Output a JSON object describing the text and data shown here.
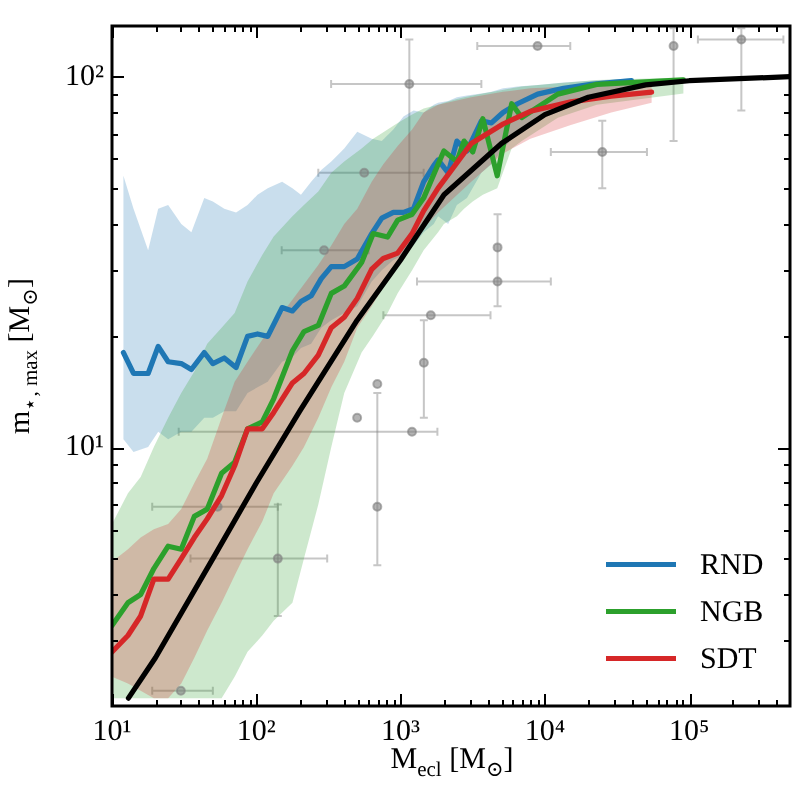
{
  "chart_data": {
    "type": "line",
    "xlabel": "M$_{ecl}$ [M$_{⊙}$]",
    "ylabel": "m$_{⋆, max}$ [M$_{⊙}$]",
    "log": "xy",
    "grid": false,
    "legend": "bottom right",
    "marker": "none",
    "xlim": [
      10,
      500000
    ],
    "ylim": [
      2,
      137
    ],
    "xticks": [
      {
        "value": 10,
        "label": "10¹"
      },
      {
        "value": 20,
        "label": null
      },
      {
        "value": 30,
        "label": null
      },
      {
        "value": 40,
        "label": null
      },
      {
        "value": 50,
        "label": null
      },
      {
        "value": 60,
        "label": null
      },
      {
        "value": 70,
        "label": null
      },
      {
        "value": 80,
        "label": null
      },
      {
        "value": 90,
        "label": null
      },
      {
        "value": 100,
        "label": "10²"
      },
      {
        "value": 200,
        "label": null
      },
      {
        "value": 300,
        "label": null
      },
      {
        "value": 400,
        "label": null
      },
      {
        "value": 500,
        "label": null
      },
      {
        "value": 600,
        "label": null
      },
      {
        "value": 700,
        "label": null
      },
      {
        "value": 800,
        "label": null
      },
      {
        "value": 900,
        "label": null
      },
      {
        "value": 1000,
        "label": "10³"
      },
      {
        "value": 2000,
        "label": null
      },
      {
        "value": 3000,
        "label": null
      },
      {
        "value": 4000,
        "label": null
      },
      {
        "value": 5000,
        "label": null
      },
      {
        "value": 6000,
        "label": null
      },
      {
        "value": 7000,
        "label": null
      },
      {
        "value": 8000,
        "label": null
      },
      {
        "value": 9000,
        "label": null
      },
      {
        "value": 10000,
        "label": "10⁴"
      },
      {
        "value": 20000,
        "label": null
      },
      {
        "value": 30000,
        "label": null
      },
      {
        "value": 40000,
        "label": null
      },
      {
        "value": 50000,
        "label": null
      },
      {
        "value": 60000,
        "label": null
      },
      {
        "value": 70000,
        "label": null
      },
      {
        "value": 80000,
        "label": null
      },
      {
        "value": 90000,
        "label": null
      },
      {
        "value": 100000,
        "label": "10⁵"
      },
      {
        "value": 200000,
        "label": null
      },
      {
        "value": 300000,
        "label": null
      },
      {
        "value": 400000,
        "label": null
      }
    ],
    "yticks": [
      {
        "value": 3,
        "label": null
      },
      {
        "value": 4,
        "label": null
      },
      {
        "value": 5,
        "label": null
      },
      {
        "value": 6,
        "label": null
      },
      {
        "value": 7,
        "label": null
      },
      {
        "value": 8,
        "label": null
      },
      {
        "value": 9,
        "label": null
      },
      {
        "value": 10,
        "label": "10¹"
      },
      {
        "value": 20,
        "label": null
      },
      {
        "value": 30,
        "label": null
      },
      {
        "value": 40,
        "label": null
      },
      {
        "value": 50,
        "label": null
      },
      {
        "value": 60,
        "label": null
      },
      {
        "value": 70,
        "label": null
      },
      {
        "value": 80,
        "label": null
      },
      {
        "value": 90,
        "label": null
      },
      {
        "value": 100,
        "label": "10²"
      }
    ],
    "series": [
      {
        "type": "scatter",
        "marker": "circle",
        "color": "#808080",
        "x": [
          1150,
          230000,
          78000,
          8900,
          25000,
          4700,
          1620,
          4700,
          1450,
          690,
          1200,
          141,
          30,
          690,
          54,
          500,
          560,
          295
        ],
        "values": [
          95.5,
          126,
          121,
          121,
          62.6,
          34.6,
          22.7,
          28,
          16.9,
          14.8,
          11,
          5.0,
          2.2,
          6.9,
          6.9,
          12,
          55,
          34
        ],
        "xerrors": [
          [
            330,
            3630
          ],
          [
            115000,
            450000
          ],
          null,
          [
            3400,
            15000
          ],
          [
            11000,
            51000
          ],
          null,
          [
            760,
            4200
          ],
          [
            1300,
            11000
          ],
          null,
          null,
          [
            29,
            1800
          ],
          [
            35,
            310
          ],
          [
            19,
            50
          ],
          null,
          [
            19,
            141
          ],
          null,
          [
            269,
            1445
          ],
          [
            150,
            600
          ]
        ],
        "errors": [
          [
            42,
            126
          ],
          [
            81,
            135
          ],
          [
            67,
            135
          ],
          null,
          [
            50,
            76
          ],
          [
            24,
            42.5
          ],
          null,
          null,
          [
            12,
            22
          ],
          null,
          null,
          [
            3.5,
            7
          ],
          null,
          [
            4.8,
            14
          ],
          null,
          null,
          null,
          null
        ]
      },
      {
        "name": "RND",
        "color": "#1f77b4",
        "x": [
          12,
          14.1,
          17.8,
          20.9,
          24.5,
          30.2,
          35.5,
          43.6,
          50,
          60,
          72.4,
          87,
          102,
          120,
          151,
          178,
          204,
          240,
          282,
          331,
          407,
          501,
          631,
          741,
          891,
          1047,
          1230,
          1445,
          1698,
          1820,
          2138,
          2455,
          2884,
          3631,
          4266,
          5129,
          6457,
          8913,
          13490,
          20890,
          39810
        ],
        "values": [
          18,
          15.8,
          15.8,
          18.7,
          17,
          16.8,
          16.2,
          18,
          16.8,
          17.4,
          16.4,
          19.9,
          20.2,
          19.9,
          23.8,
          23.3,
          24.7,
          25.6,
          28.5,
          30.7,
          30.7,
          32.2,
          37.7,
          41.5,
          43,
          43,
          44,
          52,
          57.5,
          59.6,
          55,
          67,
          63,
          76,
          75,
          80,
          84.5,
          89.7,
          93,
          95.3,
          97.6
        ],
        "upper": [
          54,
          44,
          34,
          44,
          45,
          40,
          38,
          47,
          46,
          44,
          43,
          45,
          48,
          50,
          52,
          50,
          48,
          52,
          56,
          59,
          64,
          71,
          68,
          67,
          72,
          78,
          81,
          80,
          84,
          85,
          86,
          88,
          89,
          90,
          91,
          93,
          94,
          95,
          96.5,
          97.5,
          98.8
        ],
        "lower": [
          10.5,
          9.7,
          10,
          11,
          10.5,
          11,
          11,
          12,
          12,
          12.5,
          12.5,
          14,
          14.5,
          15,
          17,
          17.5,
          18.5,
          19,
          21,
          22,
          23,
          24,
          28,
          30,
          32,
          33,
          35,
          38,
          40,
          42,
          40,
          45,
          47,
          55,
          58,
          64,
          70,
          78,
          85,
          89,
          92
        ]
      },
      {
        "name": "NGB",
        "color": "#2ca02c",
        "x": [
          10,
          12.9,
          15.8,
          19.5,
          24.5,
          30.2,
          37.2,
          45.7,
          57.5,
          70.8,
          87,
          110,
          132,
          178,
          214,
          269,
          331,
          407,
          537,
          646,
          813,
          955,
          1202,
          1445,
          1820,
          1995,
          2455,
          2754,
          3162,
          3715,
          4677,
          5888,
          6918,
          12300,
          22900,
          91200
        ],
        "values": [
          3.3,
          3.8,
          4,
          4.7,
          5.4,
          5.3,
          6.5,
          6.8,
          8.5,
          9.1,
          11.2,
          11.7,
          13.5,
          18.2,
          20.5,
          21.3,
          26,
          27.2,
          31.5,
          37.7,
          36.9,
          41,
          42.5,
          47,
          58,
          63,
          59,
          67,
          62.6,
          77,
          54,
          84.5,
          77.6,
          89.7,
          95.3,
          98
        ],
        "upper": [
          6.2,
          7.5,
          8.3,
          10,
          12,
          14,
          16,
          19,
          21,
          23,
          28,
          33,
          37,
          42,
          45,
          49,
          55,
          59,
          64,
          68,
          72,
          75,
          79,
          82,
          84,
          85,
          87,
          88,
          89,
          90,
          91.5,
          93,
          94,
          96,
          98,
          99.5
        ],
        "lower": [
          2.1,
          2.1,
          2.1,
          2.1,
          2.1,
          2.1,
          2.1,
          2.1,
          2.1,
          2.4,
          2.8,
          3.1,
          3.4,
          3.8,
          5,
          7,
          10,
          14,
          18,
          20,
          23,
          26,
          30,
          34,
          38,
          40,
          42,
          44,
          46,
          48,
          50,
          64,
          67,
          77.5,
          84,
          90
        ]
      },
      {
        "name": "SDT",
        "color": "#d62728",
        "x": [
          10,
          12.9,
          15.8,
          19.5,
          24.5,
          30.2,
          37.2,
          45.7,
          57.5,
          70.8,
          87,
          110,
          132,
          178,
          214,
          269,
          331,
          407,
          501,
          631,
          759,
          955,
          1202,
          1445,
          1820,
          3090,
          5129,
          7943,
          15140,
          28840,
          54950
        ],
        "values": [
          2.8,
          3.1,
          3.5,
          4.4,
          4.4,
          5.0,
          5.7,
          6.4,
          7.4,
          8.9,
          11.2,
          11.2,
          12.4,
          14.9,
          15.8,
          17.7,
          21,
          22.4,
          25.2,
          30.2,
          32.3,
          33.4,
          37.7,
          43.4,
          50,
          66,
          74.5,
          80.6,
          85.5,
          88.6,
          90.8
        ],
        "upper": [
          4.9,
          5.3,
          5.7,
          6,
          6.2,
          6.8,
          8,
          9.3,
          12,
          15,
          17,
          19.5,
          21.5,
          25,
          27.5,
          31,
          35,
          40,
          44,
          52,
          58,
          65,
          72,
          80,
          84,
          88,
          91,
          93,
          94,
          95,
          95
        ],
        "lower": [
          2.4,
          2.3,
          2.2,
          2.1,
          2.1,
          2.3,
          2.7,
          3.2,
          3.8,
          4.5,
          5.3,
          6.3,
          7.5,
          8.9,
          10,
          12,
          14.5,
          17,
          21,
          24,
          27,
          31,
          36,
          39,
          43,
          52,
          62,
          68,
          74,
          80,
          85
        ]
      },
      {
        "color": "#000000",
        "x": [
          13,
          20,
          50,
          100,
          200,
          500,
          1000,
          2000,
          5000,
          10000,
          20000,
          50000,
          100000,
          500000
        ],
        "values": [
          2.1,
          2.7,
          5,
          8,
          12.5,
          22,
          32,
          48,
          66,
          79,
          88,
          95,
          97.5,
          100
        ]
      }
    ]
  }
}
